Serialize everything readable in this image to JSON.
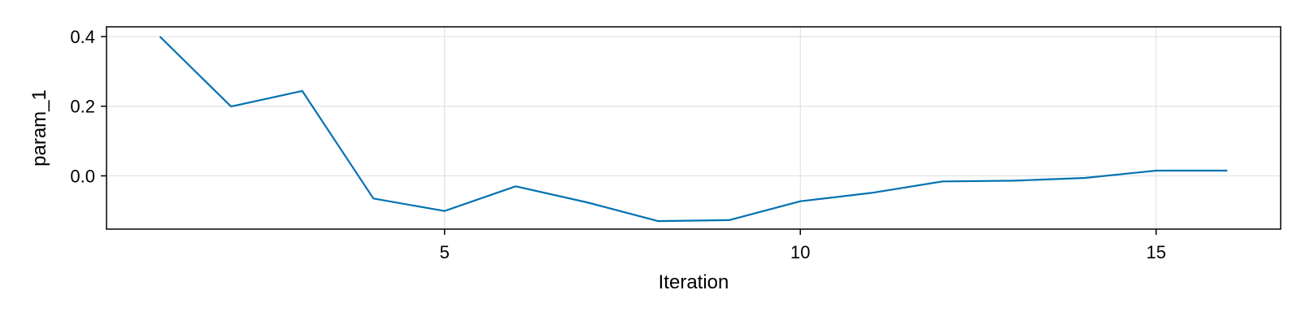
{
  "chart_data": {
    "type": "line",
    "title": "",
    "xlabel": "Iteration",
    "ylabel": "param_1",
    "xlim": [
      0.25,
      16.75
    ],
    "ylim": [
      -0.153,
      0.428
    ],
    "xticks": [
      5,
      10,
      15
    ],
    "yticks": [
      0.0,
      0.2,
      0.4
    ],
    "ytick_labels": [
      "0.0",
      "0.2",
      "0.4"
    ],
    "grid": true,
    "series": [
      {
        "color": "#0072b2",
        "x": [
          1,
          2,
          3,
          4,
          5,
          6,
          7,
          8,
          9,
          10,
          11,
          12,
          13,
          14,
          15,
          16
        ],
        "values": [
          0.4,
          0.199,
          0.244,
          -0.065,
          -0.101,
          -0.03,
          -0.076,
          -0.13,
          -0.127,
          -0.073,
          -0.049,
          -0.016,
          -0.014,
          -0.006,
          0.015,
          0.015
        ]
      }
    ]
  }
}
